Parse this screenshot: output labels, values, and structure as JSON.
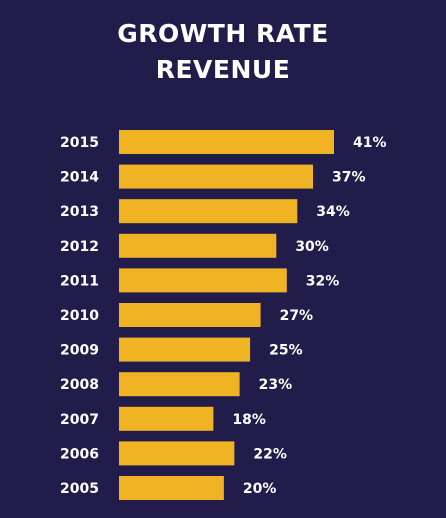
{
  "chart_data": {
    "type": "bar",
    "orientation": "horizontal",
    "title_line1": "GROWTH RATE",
    "title_line2": "REVENUE",
    "categories": [
      "2015",
      "2014",
      "2013",
      "2012",
      "2011",
      "2010",
      "2009",
      "2008",
      "2007",
      "2006",
      "2005"
    ],
    "values": [
      41,
      37,
      34,
      30,
      32,
      27,
      25,
      23,
      18,
      22,
      20
    ],
    "value_labels": [
      "41%",
      "37%",
      "34%",
      "30%",
      "32%",
      "27%",
      "25%",
      "23%",
      "18%",
      "22%",
      "20%"
    ],
    "xlabel": "",
    "ylabel": "",
    "grid": false,
    "legend": "none",
    "bar_color": "#f0b323",
    "background_color": "#211c4a",
    "text_color": "#ffffff"
  }
}
